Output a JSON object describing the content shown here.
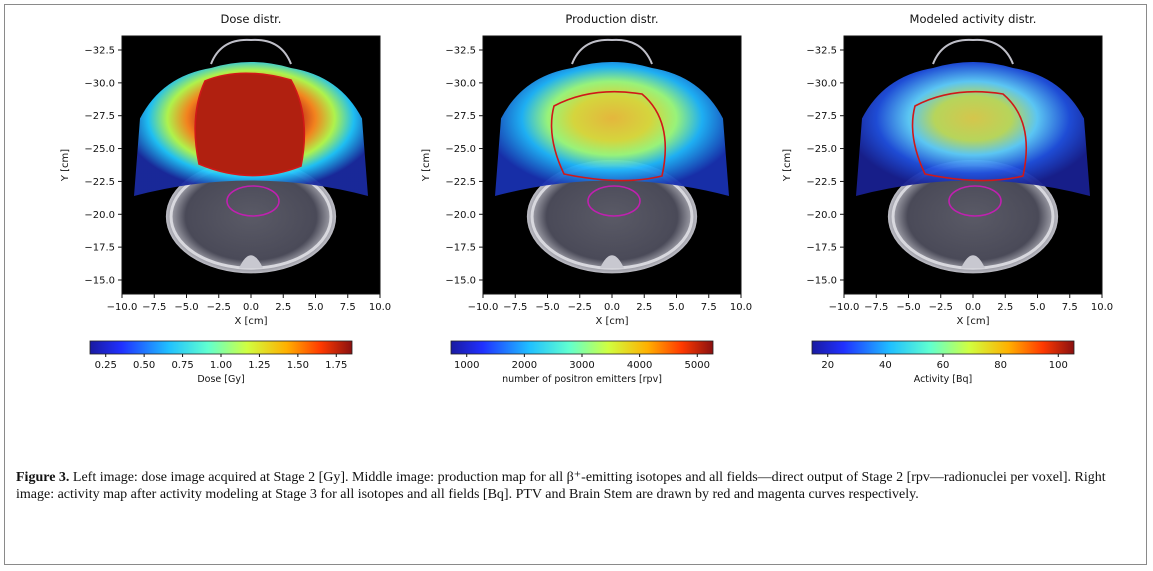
{
  "panels": [
    {
      "title": "Dose distr.",
      "xlabel": "X [cm]",
      "ylabel": "Y [cm]",
      "x_ticks": [
        "−10.0",
        "−7.5",
        "−5.0",
        "−2.5",
        "0.0",
        "2.5",
        "5.0",
        "7.5",
        "10.0"
      ],
      "y_ticks": [
        "−32.5",
        "−30.0",
        "−27.5",
        "−25.0",
        "−22.5",
        "−20.0",
        "−17.5",
        "−15.0"
      ],
      "colorbar_ticks": [
        "0.25",
        "0.50",
        "0.75",
        "1.00",
        "1.25",
        "1.50",
        "1.75"
      ],
      "colorbar_label": "Dose [Gy]"
    },
    {
      "title": "Production distr.",
      "xlabel": "X [cm]",
      "ylabel": "Y [cm]",
      "x_ticks": [
        "−10.0",
        "−7.5",
        "−5.0",
        "−2.5",
        "0.0",
        "2.5",
        "5.0",
        "7.5",
        "10.0"
      ],
      "y_ticks": [
        "−32.5",
        "−30.0",
        "−27.5",
        "−25.0",
        "−22.5",
        "−20.0",
        "−17.5",
        "−15.0"
      ],
      "colorbar_ticks": [
        "1000",
        "2000",
        "3000",
        "4000",
        "5000"
      ],
      "colorbar_label": "number of positron emitters [rpv]"
    },
    {
      "title": "Modeled activity distr.",
      "xlabel": "X [cm]",
      "ylabel": "Y [cm]",
      "x_ticks": [
        "−10.0",
        "−7.5",
        "−5.0",
        "−2.5",
        "0.0",
        "2.5",
        "5.0",
        "7.5",
        "10.0"
      ],
      "y_ticks": [
        "−32.5",
        "−30.0",
        "−27.5",
        "−25.0",
        "−22.5",
        "−20.0",
        "−17.5",
        "−15.0"
      ],
      "colorbar_ticks": [
        "20",
        "40",
        "60",
        "80",
        "100"
      ],
      "colorbar_label": "Activity [Bq]"
    }
  ],
  "caption": {
    "label": "Figure 3.",
    "text": " Left image: dose image acquired at Stage 2 [Gy]. Middle image: production map for all β⁺-emitting isotopes and all fields—direct output of Stage 2 [rpv—radionuclei per voxel]. Right image: activity map after activity modeling at Stage 3 for all isotopes and all fields [Bq]. PTV and Brain Stem are drawn by red and magenta curves respectively."
  },
  "colors": {
    "ptv_contour": "#d01818",
    "brainstem_contour": "#c020b0",
    "background": "#000000"
  }
}
